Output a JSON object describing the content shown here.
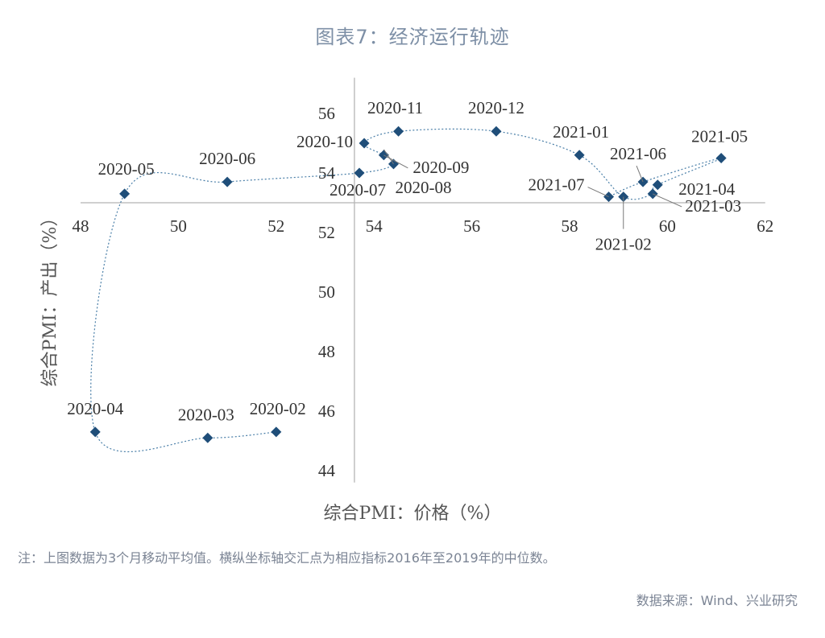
{
  "title": "图表7：经济运行轨迹",
  "note": "注：上图数据为3个月移动平均值。横纵坐标轴交汇点为相应指标2016年至2019年的中位数。",
  "source": "数据来源：Wind、兴业研究",
  "chart_data": {
    "type": "scatter",
    "xlabel": "综合PMI：价格（%）",
    "ylabel": "综合PMI：产出（%）",
    "xlim": [
      48,
      62
    ],
    "ylim": [
      44,
      57
    ],
    "x_ticks": [
      48,
      50,
      52,
      54,
      56,
      58,
      60,
      62
    ],
    "y_ticks": [
      44,
      46,
      48,
      50,
      52,
      54,
      56
    ],
    "x_axis_crosses_y_at": 53.0,
    "y_axis_crosses_x_at": 53.6,
    "marker": "diamond",
    "color": "#1f4e79",
    "line_style": "dotted",
    "points": [
      {
        "label": "2020-02",
        "x": 52.0,
        "y": 45.3
      },
      {
        "label": "2020-03",
        "x": 50.6,
        "y": 45.1
      },
      {
        "label": "2020-04",
        "x": 48.3,
        "y": 45.3
      },
      {
        "label": "2020-05",
        "x": 48.9,
        "y": 53.3
      },
      {
        "label": "2020-06",
        "x": 51.0,
        "y": 53.7
      },
      {
        "label": "2020-07",
        "x": 53.7,
        "y": 54.0
      },
      {
        "label": "2020-08",
        "x": 54.4,
        "y": 54.3
      },
      {
        "label": "2020-09",
        "x": 54.2,
        "y": 54.6
      },
      {
        "label": "2020-10",
        "x": 53.8,
        "y": 55.0
      },
      {
        "label": "2020-11",
        "x": 54.5,
        "y": 55.4
      },
      {
        "label": "2020-12",
        "x": 56.5,
        "y": 55.4
      },
      {
        "label": "2021-01",
        "x": 58.2,
        "y": 54.6
      },
      {
        "label": "2021-02",
        "x": 59.1,
        "y": 53.2
      },
      {
        "label": "2021-03",
        "x": 59.7,
        "y": 53.3
      },
      {
        "label": "2021-04",
        "x": 59.8,
        "y": 53.6
      },
      {
        "label": "2021-05",
        "x": 61.1,
        "y": 54.5
      },
      {
        "label": "2021-06",
        "x": 59.5,
        "y": 53.7
      },
      {
        "label": "2021-07",
        "x": 58.8,
        "y": 53.2
      }
    ],
    "path_order": [
      "2020-02",
      "2020-03",
      "2020-04",
      "2020-05",
      "2020-06",
      "2020-07",
      "2020-08",
      "2020-09",
      "2020-10",
      "2020-11",
      "2020-12",
      "2021-01",
      "2021-02",
      "2021-03",
      "2021-04",
      "2021-05",
      "2021-06",
      "2021-07"
    ]
  }
}
